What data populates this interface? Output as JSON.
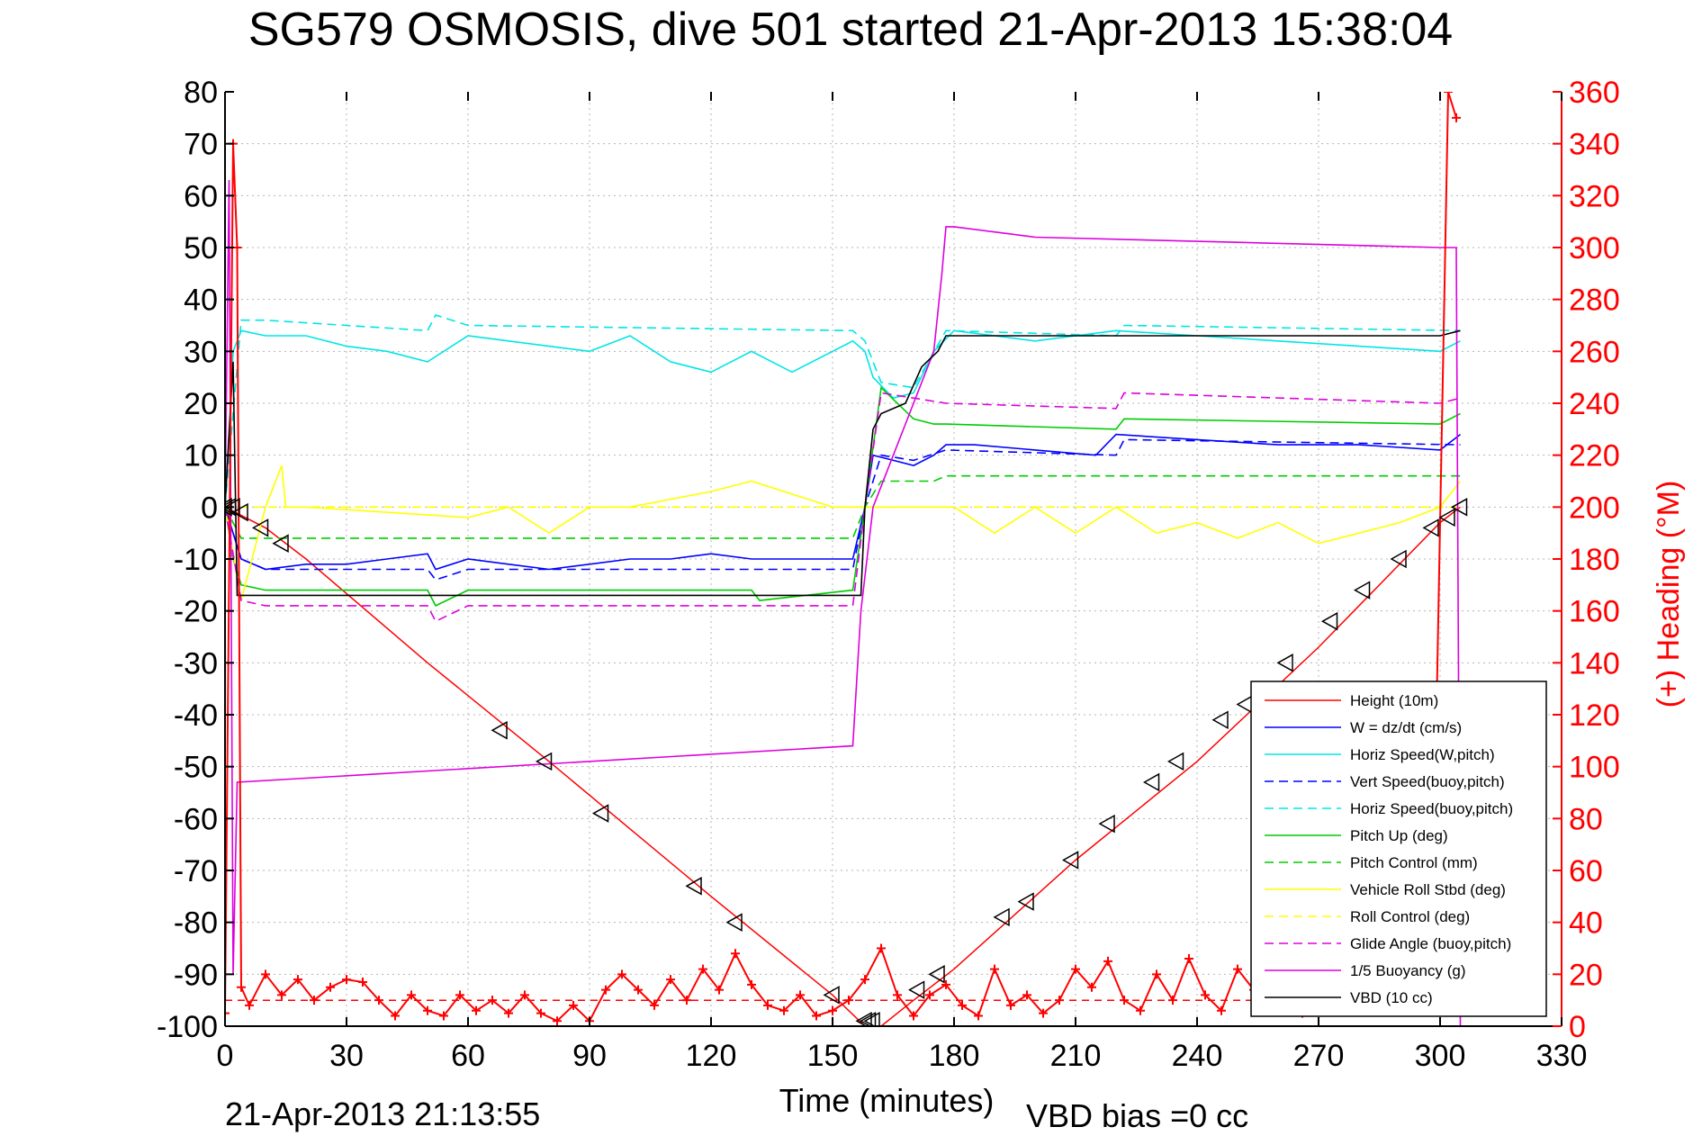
{
  "chart_data": {
    "type": "line",
    "title": "SG579 OSMOSIS, dive 501 started 21-Apr-2013 15:38:04",
    "xlabel": "Time (minutes)",
    "ylabel_right": "(+) Heading (°M)",
    "footer_left": "21-Apr-2013 21:13:55",
    "footer_right": "VBD bias =0 cc",
    "xlim": [
      0,
      330
    ],
    "ylim": [
      -100,
      80
    ],
    "ylim_right": [
      0,
      360
    ],
    "xticks": [
      0,
      30,
      60,
      90,
      120,
      150,
      180,
      210,
      240,
      270,
      300,
      330
    ],
    "yticks": [
      -100,
      -90,
      -80,
      -70,
      -60,
      -50,
      -40,
      -30,
      -20,
      -10,
      0,
      10,
      20,
      30,
      40,
      50,
      60,
      70,
      80
    ],
    "yticks_right": [
      0,
      20,
      40,
      60,
      80,
      100,
      120,
      140,
      160,
      180,
      200,
      220,
      240,
      260,
      280,
      300,
      320,
      340,
      360
    ],
    "grid": true,
    "legend_position": "bottom-right",
    "colors": {
      "right_axis": "#ff0000",
      "axes": "#000000",
      "grid": "#b4b4b4"
    },
    "series": [
      {
        "name": "Height (10m)",
        "color": "#ff0000",
        "style": "solid",
        "x": [
          0,
          10,
          20,
          50,
          80,
          120,
          150,
          158,
          162,
          170,
          180,
          210,
          240,
          270,
          300,
          305
        ],
        "y": [
          0,
          -4,
          -10,
          -30,
          -49,
          -75,
          -94,
          -100,
          -100,
          -95,
          -89,
          -68,
          -49,
          -27,
          -3,
          0
        ]
      },
      {
        "name": "W = dz/dt (cm/s)",
        "color": "#0000ff",
        "style": "solid",
        "x": [
          0,
          2,
          4,
          10,
          20,
          30,
          40,
          50,
          52,
          60,
          70,
          80,
          90,
          100,
          110,
          120,
          130,
          140,
          155,
          158,
          160,
          165,
          170,
          175,
          178,
          185,
          200,
          215,
          220,
          240,
          260,
          280,
          300,
          305
        ],
        "y": [
          0,
          -5,
          -10,
          -12,
          -11,
          -11,
          -10,
          -9,
          -12,
          -10,
          -11,
          -12,
          -11,
          -10,
          -10,
          -9,
          -10,
          -10,
          -10,
          0,
          10,
          9,
          8,
          10,
          12,
          12,
          11,
          10,
          14,
          13,
          12,
          12,
          11,
          14
        ]
      },
      {
        "name": "Horiz Speed(W,pitch)",
        "color": "#00e5e5",
        "style": "solid",
        "x": [
          0,
          2,
          4,
          10,
          20,
          30,
          40,
          50,
          60,
          70,
          80,
          90,
          100,
          110,
          120,
          130,
          140,
          155,
          158,
          160,
          165,
          170,
          175,
          180,
          190,
          200,
          210,
          220,
          240,
          260,
          280,
          300,
          305
        ],
        "y": [
          0,
          30,
          34,
          33,
          33,
          31,
          30,
          28,
          33,
          32,
          31,
          30,
          33,
          28,
          26,
          30,
          26,
          32,
          30,
          25,
          21,
          22,
          30,
          34,
          33,
          32,
          33,
          34,
          33,
          32,
          31,
          30,
          32
        ]
      },
      {
        "name": "Vert Speed(buoy,pitch)",
        "color": "#0000ff",
        "style": "dash",
        "x": [
          0,
          4,
          10,
          50,
          52,
          60,
          155,
          158,
          162,
          170,
          178,
          220,
          222,
          305
        ],
        "y": [
          0,
          -10,
          -12,
          -12,
          -14,
          -12,
          -12,
          0,
          10,
          9,
          11,
          10,
          13,
          12
        ]
      },
      {
        "name": "Horiz Speed(buoy,pitch)",
        "color": "#00e5e5",
        "style": "dash",
        "x": [
          0,
          4,
          10,
          50,
          52,
          60,
          155,
          158,
          162,
          170,
          178,
          220,
          222,
          305
        ],
        "y": [
          0,
          36,
          36,
          34,
          37,
          35,
          34,
          32,
          24,
          23,
          34,
          33,
          35,
          34
        ]
      },
      {
        "name": "Pitch Up (deg)",
        "color": "#00cc00",
        "style": "solid",
        "x": [
          0,
          2,
          4,
          10,
          50,
          52,
          60,
          130,
          132,
          155,
          158,
          162,
          170,
          175,
          178,
          220,
          222,
          300,
          305
        ],
        "y": [
          0,
          -10,
          -15,
          -16,
          -16,
          -19,
          -16,
          -16,
          -18,
          -16,
          0,
          23,
          17,
          16,
          16,
          15,
          17,
          16,
          18
        ]
      },
      {
        "name": "Pitch Control (mm)",
        "color": "#00cc00",
        "style": "dash",
        "x": [
          0,
          4,
          10,
          155,
          158,
          162,
          175,
          178,
          300,
          305
        ],
        "y": [
          0,
          -6,
          -6,
          -6,
          0,
          5,
          5,
          6,
          6,
          6
        ]
      },
      {
        "name": "Vehicle Roll Stbd (deg)",
        "color": "#ffff00",
        "style": "solid",
        "x": [
          0,
          4,
          10,
          14,
          15,
          16,
          20,
          60,
          70,
          80,
          90,
          100,
          120,
          130,
          150,
          157,
          160,
          170,
          180,
          190,
          200,
          210,
          220,
          230,
          240,
          250,
          260,
          270,
          280,
          290,
          300,
          305
        ],
        "y": [
          0,
          -18,
          0,
          8,
          0,
          0,
          0,
          -2,
          0,
          -5,
          0,
          0,
          3,
          5,
          0,
          0,
          0,
          0,
          0,
          -5,
          0,
          -5,
          0,
          -5,
          -3,
          -6,
          -3,
          -7,
          -5,
          -3,
          0,
          5
        ]
      },
      {
        "name": "Roll Control (deg)",
        "color": "#ffff00",
        "style": "dash",
        "x": [
          0,
          305
        ],
        "y": [
          0,
          0
        ]
      },
      {
        "name": "Glide Angle (buoy,pitch)",
        "color": "#dd00dd",
        "style": "dash",
        "x": [
          0,
          4,
          10,
          50,
          52,
          60,
          155,
          158,
          162,
          170,
          178,
          220,
          222,
          300,
          305
        ],
        "y": [
          0,
          -18,
          -19,
          -19,
          -22,
          -19,
          -19,
          0,
          22,
          21,
          20,
          19,
          22,
          20,
          21
        ]
      },
      {
        "name": "1/5 Buoyancy (g)",
        "color": "#dd00dd",
        "style": "solid",
        "x": [
          0,
          1,
          2,
          3,
          155,
          157,
          160,
          170,
          175,
          177,
          178,
          180,
          200,
          250,
          300,
          304,
          305
        ],
        "y": [
          0,
          63,
          -90,
          -53,
          -46,
          -20,
          0,
          20,
          30,
          45,
          54,
          54,
          52,
          51,
          50,
          50,
          -100
        ]
      },
      {
        "name": "VBD (10 cc)",
        "color": "#000000",
        "style": "solid",
        "x": [
          0,
          2,
          3,
          157,
          158,
          160,
          162,
          168,
          172,
          176,
          178,
          300,
          305
        ],
        "y": [
          0,
          28,
          -17,
          -17,
          0,
          15,
          18,
          20,
          27,
          30,
          33,
          33,
          34
        ]
      }
    ],
    "heading": {
      "name": "(+) Heading",
      "color": "#ff0000",
      "x": [
        0,
        2,
        3,
        4,
        6,
        10,
        14,
        18,
        22,
        26,
        30,
        34,
        38,
        42,
        46,
        50,
        54,
        58,
        62,
        66,
        70,
        74,
        78,
        82,
        86,
        90,
        94,
        98,
        102,
        106,
        110,
        114,
        118,
        122,
        126,
        130,
        134,
        138,
        142,
        146,
        150,
        154,
        158,
        162,
        166,
        170,
        174,
        178,
        182,
        186,
        190,
        194,
        198,
        202,
        206,
        210,
        214,
        218,
        222,
        226,
        230,
        234,
        238,
        242,
        246,
        250,
        254,
        258,
        262,
        266,
        270,
        274,
        278,
        282,
        286,
        290,
        294,
        298,
        302,
        304
      ],
      "y": [
        5,
        340,
        300,
        15,
        8,
        20,
        12,
        18,
        10,
        15,
        18,
        17,
        10,
        4,
        12,
        6,
        4,
        12,
        6,
        10,
        5,
        12,
        5,
        2,
        8,
        2,
        14,
        20,
        14,
        8,
        18,
        10,
        22,
        14,
        28,
        16,
        8,
        6,
        12,
        4,
        6,
        10,
        18,
        30,
        12,
        4,
        12,
        16,
        8,
        4,
        22,
        8,
        12,
        5,
        10,
        22,
        15,
        25,
        10,
        6,
        20,
        10,
        26,
        12,
        6,
        22,
        14,
        30,
        12,
        5,
        18,
        24,
        12,
        6,
        28,
        12,
        20,
        28,
        360,
        350
      ]
    },
    "heading_desired": {
      "color": "#ff0000",
      "style": "dash",
      "x": [
        0,
        305
      ],
      "y": [
        10,
        10
      ]
    },
    "markers": {
      "color": "#000000",
      "x": [
        0,
        1,
        2,
        4,
        9,
        14,
        68,
        79,
        93,
        116,
        126,
        150,
        158,
        159,
        160,
        171,
        176,
        192,
        198,
        209,
        218,
        229,
        235,
        246,
        252,
        262,
        273,
        281,
        290,
        298,
        302,
        305
      ],
      "y": [
        0,
        0,
        0,
        -1,
        -4,
        -7,
        -43,
        -49,
        -59,
        -73,
        -80,
        -94,
        -99,
        -99,
        -99,
        -93,
        -90,
        -79,
        -76,
        -68,
        -61,
        -53,
        -49,
        -41,
        -38,
        -30,
        -22,
        -16,
        -10,
        -4,
        -2,
        0
      ]
    }
  }
}
